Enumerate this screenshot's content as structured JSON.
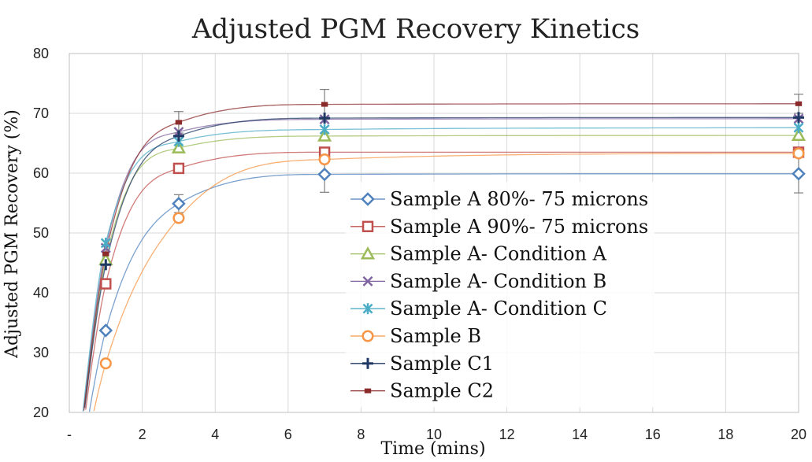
{
  "chart_data": {
    "type": "scatter",
    "title": "Adjusted PGM Recovery Kinetics",
    "xlabel": "Time (mins)",
    "ylabel": "Adjusted PGM Recovery (%)",
    "xlim": [
      0,
      20
    ],
    "ylim": [
      20,
      80
    ],
    "x_ticks": [
      0,
      2,
      4,
      6,
      8,
      10,
      12,
      14,
      16,
      18,
      20
    ],
    "x_tick_labels": [
      "-",
      "2",
      "4",
      "6",
      "8",
      "10",
      "12",
      "14",
      "16",
      "18",
      "20"
    ],
    "y_ticks": [
      20,
      30,
      40,
      50,
      60,
      70,
      80
    ],
    "y_tick_labels": [
      "20",
      "30",
      "40",
      "50",
      "60",
      "70",
      "80"
    ],
    "grid": "vertical and horizontal",
    "legend_position": "center",
    "x": [
      1,
      3,
      7,
      20
    ],
    "series": [
      {
        "name": "Sample A 80%- 75 microns",
        "marker": "diamond",
        "color": "#4f81bd",
        "values": [
          33.7,
          54.9,
          59.8,
          59.9
        ],
        "error": [
          0,
          1.5,
          3.0,
          3.2
        ]
      },
      {
        "name": "Sample A 90%- 75 microns",
        "marker": "square",
        "color": "#c0504d",
        "values": [
          41.5,
          60.8,
          63.5,
          63.5
        ],
        "error": [
          0,
          0,
          0,
          0
        ]
      },
      {
        "name": "Sample A- Condition A",
        "marker": "triangle",
        "color": "#9bbb59",
        "values": [
          45.5,
          64.2,
          66.2,
          66.3
        ],
        "error": [
          0,
          0,
          0,
          0
        ]
      },
      {
        "name": "Sample A- Condition B",
        "marker": "x",
        "color": "#8064a2",
        "values": [
          47.5,
          66.9,
          69.0,
          69.1
        ],
        "error": [
          0,
          0,
          0,
          0
        ]
      },
      {
        "name": "Sample A- Condition C",
        "marker": "star",
        "color": "#4bacc6",
        "values": [
          48.3,
          65.3,
          67.3,
          67.6
        ],
        "error": [
          0,
          0,
          0,
          0
        ]
      },
      {
        "name": "Sample B",
        "marker": "circle",
        "color": "#f79646",
        "values": [
          28.2,
          52.5,
          62.3,
          63.3
        ],
        "error": [
          0,
          0,
          0,
          0
        ]
      },
      {
        "name": "Sample C1",
        "marker": "plus",
        "color": "#1f3864",
        "values": [
          44.7,
          66.2,
          69.2,
          69.3
        ],
        "error": [
          0,
          0,
          0,
          0
        ]
      },
      {
        "name": "Sample C2",
        "marker": "dash",
        "color": "#8b2a2a",
        "values": [
          46.5,
          68.5,
          71.5,
          71.6
        ],
        "error": [
          0,
          1.8,
          2.5,
          1.6
        ]
      }
    ]
  }
}
